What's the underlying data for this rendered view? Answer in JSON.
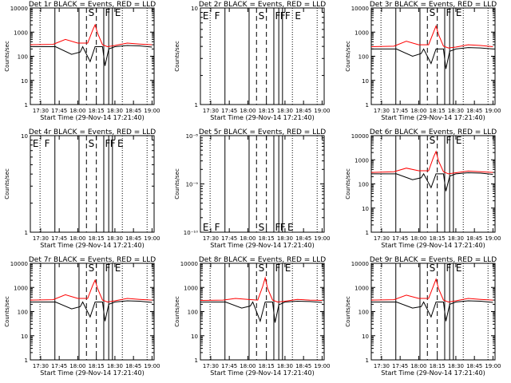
{
  "colors": {
    "events": "#000000",
    "lld": "#ff0000",
    "background": "#ffffff"
  },
  "figure": {
    "start_time_label": "Start Time (29-Nov-14 17:21:40)",
    "ylabel": "Counts/sec",
    "time_ticks": [
      "17:30",
      "17:45",
      "18:00",
      "18:15",
      "18:30",
      "18:45",
      "19:00"
    ]
  },
  "chart_data": [
    {
      "type": "line",
      "title": "Det 1r BLACK = Events, RED = LLD",
      "xlabel": "Start Time (29-Nov-14 17:21:40)",
      "ylabel": "Counts/sec",
      "yscale": "log",
      "ylim": [
        1,
        10000
      ],
      "yticks": [
        "1",
        "10",
        "100",
        "1000",
        "10000"
      ],
      "xticks": [
        "17:30",
        "17:45",
        "18:00",
        "18:15",
        "18:30",
        "18:45",
        "19:00"
      ],
      "xlim": [
        "17:21:40",
        "19:01:40"
      ],
      "has_data": true,
      "markers": [
        "S",
        "F",
        "E"
      ],
      "series": [
        {
          "color": "#000000",
          "x": [
            "17:21:40",
            "17:40",
            "17:42",
            "17:55",
            "18:02",
            "18:04",
            "18:10",
            "18:14",
            "18:20",
            "18:22",
            "18:25",
            "18:30",
            "18:40",
            "18:50",
            "19:00"
          ],
          "values": [
            250,
            250,
            250,
            120,
            150,
            250,
            60,
            250,
            250,
            40,
            200,
            250,
            280,
            270,
            240
          ]
        },
        {
          "color": "#ff0000",
          "x": [
            "17:21:40",
            "17:40",
            "17:50",
            "18:00",
            "18:08",
            "18:12",
            "18:14",
            "18:16",
            "18:20",
            "18:24",
            "18:30",
            "18:40",
            "18:50",
            "19:00"
          ],
          "values": [
            300,
            310,
            500,
            350,
            350,
            1200,
            2000,
            900,
            300,
            250,
            280,
            350,
            320,
            300
          ]
        }
      ]
    },
    {
      "type": "line",
      "title": "Det 2r BLACK = Events, RED = LLD",
      "xlabel": "Start Time (29-Nov-14 17:21:40)",
      "ylabel": "Counts/sec",
      "yscale": "log",
      "ylim": [
        1,
        10
      ],
      "yticks": [
        "1",
        "10"
      ],
      "xticks": [
        "17:30",
        "17:45",
        "18:00",
        "18:15",
        "18:30",
        "18:45",
        "19:00"
      ],
      "xlim": [
        "17:21:40",
        "19:01:40"
      ],
      "has_data": false,
      "markers": [
        "E",
        "F",
        "S",
        "F",
        "F",
        "F",
        "E"
      ],
      "series": []
    },
    {
      "type": "line",
      "title": "Det 3r BLACK = Events, RED = LLD",
      "xlabel": "Start Time (29-Nov-14 17:21:40)",
      "ylabel": "Counts/sec",
      "yscale": "log",
      "ylim": [
        1,
        10000
      ],
      "yticks": [
        "1",
        "10",
        "100",
        "1000",
        "10000"
      ],
      "xticks": [
        "17:30",
        "17:45",
        "18:00",
        "18:15",
        "18:30",
        "18:45",
        "19:00"
      ],
      "xlim": [
        "17:21:40",
        "19:01:40"
      ],
      "has_data": true,
      "markers": [
        "S",
        "F",
        "E"
      ],
      "series": [
        {
          "color": "#000000",
          "x": [
            "17:21:40",
            "17:40",
            "17:42",
            "17:55",
            "18:02",
            "18:04",
            "18:10",
            "18:14",
            "18:20",
            "18:22",
            "18:25",
            "18:30",
            "18:40",
            "18:50",
            "19:00"
          ],
          "values": [
            200,
            200,
            200,
            100,
            130,
            200,
            50,
            200,
            200,
            30,
            160,
            200,
            230,
            220,
            200
          ]
        },
        {
          "color": "#ff0000",
          "x": [
            "17:21:40",
            "17:40",
            "17:50",
            "18:00",
            "18:08",
            "18:12",
            "18:14",
            "18:16",
            "18:20",
            "18:24",
            "18:30",
            "18:40",
            "18:50",
            "19:00"
          ],
          "values": [
            250,
            260,
            420,
            300,
            300,
            1000,
            1800,
            800,
            260,
            220,
            240,
            300,
            280,
            250
          ]
        }
      ]
    },
    {
      "type": "line",
      "title": "Det 4r BLACK = Events, RED = LLD",
      "xlabel": "Start Time (29-Nov-14 17:21:40)",
      "ylabel": "Counts/sec",
      "yscale": "log",
      "ylim": [
        1,
        10
      ],
      "yticks": [
        "1",
        "10"
      ],
      "xticks": [
        "17:30",
        "17:45",
        "18:00",
        "18:15",
        "18:30",
        "18:45",
        "19:00"
      ],
      "xlim": [
        "17:21:40",
        "19:01:40"
      ],
      "has_data": false,
      "markers": [
        "E",
        "F",
        "S",
        "F",
        "F",
        "E"
      ],
      "series": []
    },
    {
      "type": "line",
      "title": "Det 5r BLACK = Events, RED = LLD",
      "xlabel": "Start Time (29-Nov-14 17:21:40)",
      "ylabel": "Counts/sec",
      "yscale": "log",
      "ylim": [
        1e-10,
        1e-08
      ],
      "yticks": [
        "10⁻¹⁰",
        "10⁻⁹",
        "10⁻⁸"
      ],
      "xticks": [
        "17:30",
        "17:45",
        "18:00",
        "18:15",
        "18:30",
        "18:45",
        "19:00"
      ],
      "xlim": [
        "17:21:40",
        "19:01:40"
      ],
      "has_data": false,
      "markers": [
        "E",
        "F",
        "S",
        "F",
        "F",
        "E"
      ],
      "series": []
    },
    {
      "type": "line",
      "title": "Det 6r BLACK = Events, RED = LLD",
      "xlabel": "Start Time (29-Nov-14 17:21:40)",
      "ylabel": "Counts/sec",
      "yscale": "log",
      "ylim": [
        1,
        10000
      ],
      "yticks": [
        "1",
        "10",
        "100",
        "1000",
        "10000"
      ],
      "xticks": [
        "17:30",
        "17:45",
        "18:00",
        "18:15",
        "18:30",
        "18:45",
        "19:00"
      ],
      "xlim": [
        "17:21:40",
        "19:01:40"
      ],
      "has_data": true,
      "markers": [
        "S",
        "F",
        "E"
      ],
      "series": [
        {
          "color": "#000000",
          "x": [
            "17:21:40",
            "17:40",
            "17:42",
            "17:55",
            "18:02",
            "18:04",
            "18:10",
            "18:14",
            "18:20",
            "18:22",
            "18:25",
            "18:30",
            "18:40",
            "18:50",
            "19:00"
          ],
          "values": [
            260,
            260,
            260,
            150,
            180,
            260,
            70,
            260,
            260,
            50,
            210,
            260,
            290,
            280,
            250
          ]
        },
        {
          "color": "#ff0000",
          "x": [
            "17:21:40",
            "17:40",
            "17:50",
            "18:00",
            "18:08",
            "18:12",
            "18:14",
            "18:16",
            "18:20",
            "18:24",
            "18:30",
            "18:40",
            "18:50",
            "19:00"
          ],
          "values": [
            300,
            320,
            450,
            350,
            350,
            1300,
            2200,
            900,
            320,
            260,
            290,
            340,
            320,
            300
          ]
        }
      ]
    },
    {
      "type": "line",
      "title": "Det 7r BLACK = Events, RED = LLD",
      "xlabel": "Start Time (29-Nov-14 17:21:40)",
      "ylabel": "Counts/sec",
      "yscale": "log",
      "ylim": [
        1,
        10000
      ],
      "yticks": [
        "1",
        "10",
        "100",
        "1000",
        "10000"
      ],
      "xticks": [
        "17:30",
        "17:45",
        "18:00",
        "18:15",
        "18:30",
        "18:45",
        "19:00"
      ],
      "xlim": [
        "17:21:40",
        "19:01:40"
      ],
      "has_data": true,
      "markers": [
        "S",
        "F",
        "E"
      ],
      "series": [
        {
          "color": "#000000",
          "x": [
            "17:21:40",
            "17:40",
            "17:42",
            "17:55",
            "18:02",
            "18:04",
            "18:10",
            "18:14",
            "18:20",
            "18:22",
            "18:25",
            "18:30",
            "18:40",
            "18:50",
            "19:00"
          ],
          "values": [
            250,
            250,
            250,
            130,
            160,
            250,
            60,
            250,
            250,
            40,
            200,
            250,
            280,
            270,
            240
          ]
        },
        {
          "color": "#ff0000",
          "x": [
            "17:21:40",
            "17:40",
            "17:50",
            "18:00",
            "18:08",
            "18:12",
            "18:14",
            "18:16",
            "18:20",
            "18:24",
            "18:30",
            "18:40",
            "18:50",
            "19:00"
          ],
          "values": [
            300,
            310,
            500,
            350,
            350,
            1200,
            2000,
            900,
            300,
            250,
            280,
            350,
            320,
            300
          ]
        }
      ]
    },
    {
      "type": "line",
      "title": "Det 8r BLACK = Events, RED = LLD",
      "xlabel": "Start Time (29-Nov-14 17:21:40)",
      "ylabel": "Counts/sec",
      "yscale": "log",
      "ylim": [
        1,
        10000
      ],
      "yticks": [
        "1",
        "10",
        "100",
        "1000",
        "10000"
      ],
      "xticks": [
        "17:30",
        "17:45",
        "18:00",
        "18:15",
        "18:30",
        "18:45",
        "19:00"
      ],
      "xlim": [
        "17:21:40",
        "19:01:40"
      ],
      "has_data": true,
      "markers": [
        "S",
        "F",
        "E"
      ],
      "series": [
        {
          "color": "#000000",
          "x": [
            "17:21:40",
            "17:40",
            "17:42",
            "17:55",
            "18:02",
            "18:04",
            "18:10",
            "18:14",
            "18:20",
            "18:22",
            "18:25",
            "18:30",
            "18:40",
            "18:50",
            "19:00"
          ],
          "values": [
            250,
            250,
            250,
            140,
            170,
            250,
            40,
            250,
            250,
            35,
            190,
            250,
            270,
            260,
            240
          ]
        },
        {
          "color": "#ff0000",
          "x": [
            "17:21:40",
            "17:40",
            "17:50",
            "18:00",
            "18:08",
            "18:12",
            "18:14",
            "18:16",
            "18:20",
            "18:24",
            "18:30",
            "18:40",
            "18:50",
            "19:00"
          ],
          "values": [
            290,
            300,
            350,
            320,
            300,
            1100,
            2500,
            900,
            300,
            250,
            270,
            320,
            300,
            290
          ]
        }
      ]
    },
    {
      "type": "line",
      "title": "Det 9r BLACK = Events, RED = LLD",
      "xlabel": "Start Time (29-Nov-14 17:21:40)",
      "ylabel": "Counts/sec",
      "yscale": "log",
      "ylim": [
        1,
        10000
      ],
      "yticks": [
        "1",
        "10",
        "100",
        "1000",
        "10000"
      ],
      "xticks": [
        "17:30",
        "17:45",
        "18:00",
        "18:15",
        "18:30",
        "18:45",
        "19:00"
      ],
      "xlim": [
        "17:21:40",
        "19:01:40"
      ],
      "has_data": true,
      "markers": [
        "S",
        "F",
        "E"
      ],
      "series": [
        {
          "color": "#000000",
          "x": [
            "17:21:40",
            "17:40",
            "17:42",
            "17:55",
            "18:02",
            "18:04",
            "18:10",
            "18:14",
            "18:20",
            "18:22",
            "18:25",
            "18:30",
            "18:40",
            "18:50",
            "19:00"
          ],
          "values": [
            250,
            250,
            250,
            140,
            160,
            250,
            60,
            250,
            250,
            40,
            200,
            250,
            280,
            270,
            240
          ]
        },
        {
          "color": "#ff0000",
          "x": [
            "17:21:40",
            "17:40",
            "17:50",
            "18:00",
            "18:08",
            "18:12",
            "18:14",
            "18:16",
            "18:20",
            "18:24",
            "18:30",
            "18:40",
            "18:50",
            "19:00"
          ],
          "values": [
            300,
            310,
            480,
            350,
            350,
            1200,
            2200,
            900,
            300,
            250,
            280,
            350,
            320,
            300
          ]
        }
      ]
    }
  ]
}
